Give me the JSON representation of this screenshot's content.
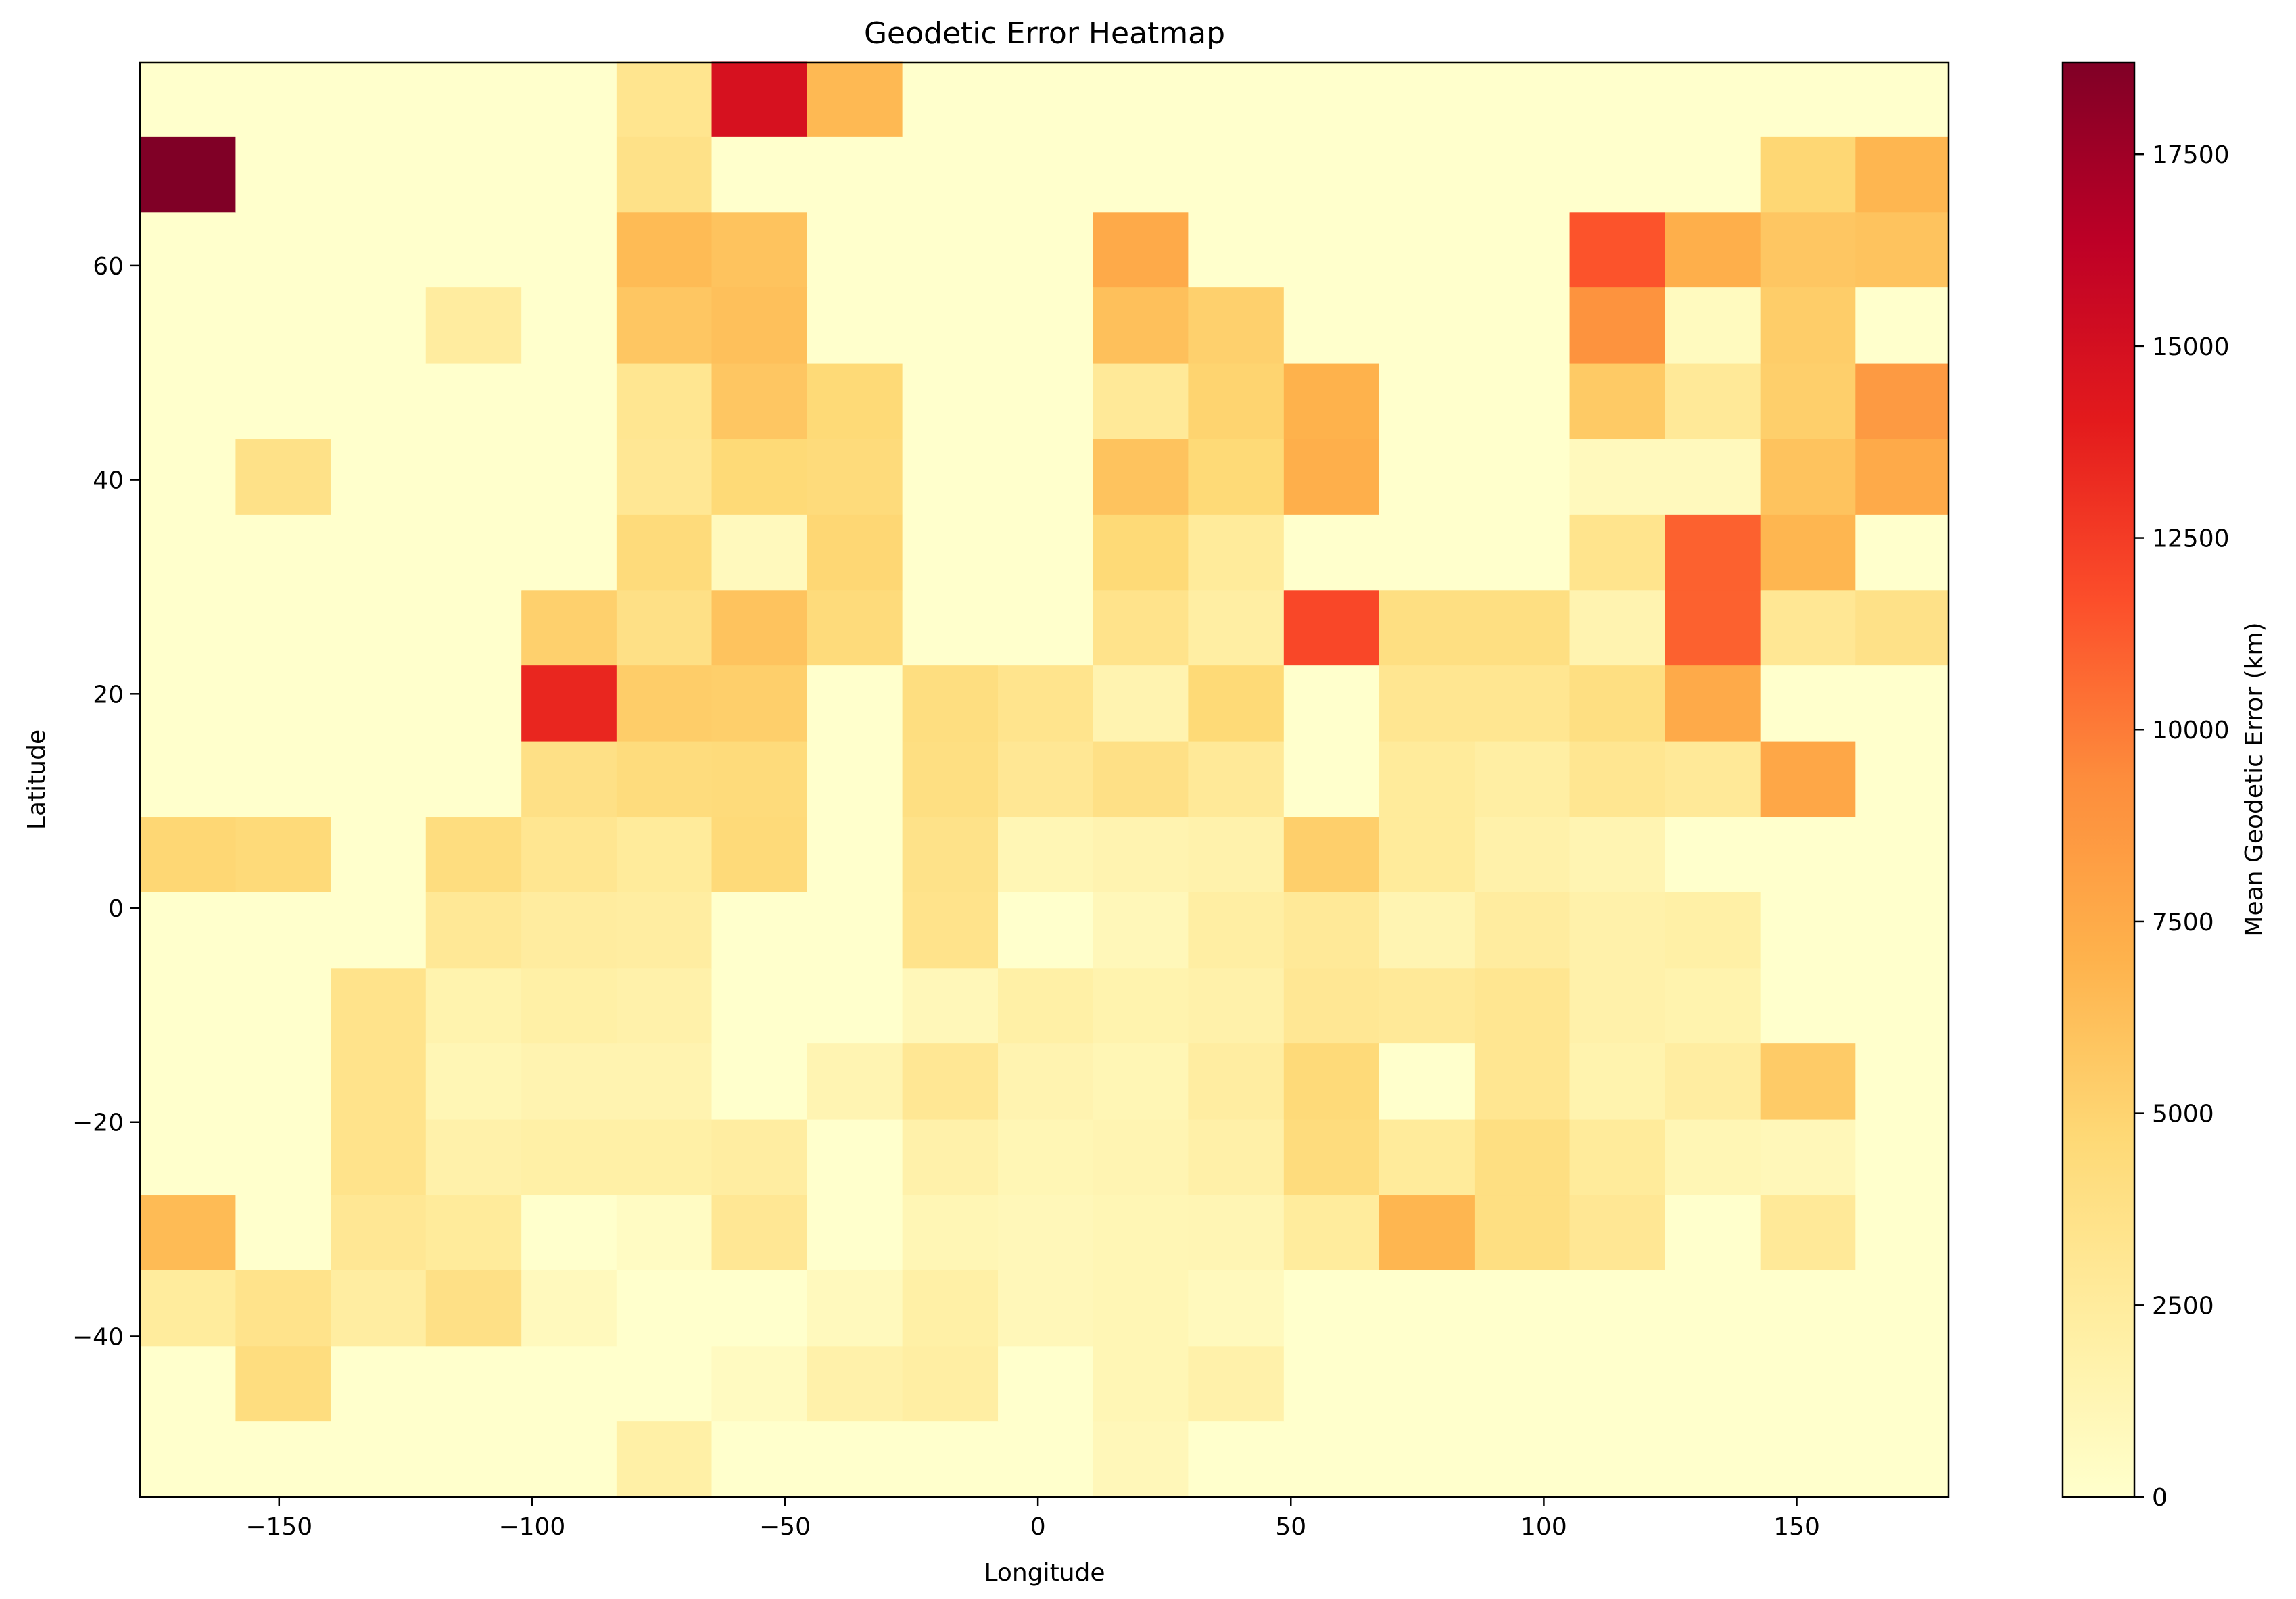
{
  "chart_data": {
    "type": "heatmap",
    "title": "Geodetic Error Heatmap",
    "xlabel": "Longitude",
    "ylabel": "Latitude",
    "colorbar_label": "Mean Geodetic Error (km)",
    "colormap": "YlOrRd",
    "xlim": [
      -177.5,
      180
    ],
    "ylim": [
      -55,
      79
    ],
    "x_edges": [
      -177.5,
      -158.6,
      -139.8,
      -121.0,
      -102.1,
      -83.3,
      -64.5,
      -45.6,
      -26.8,
      -7.9,
      10.9,
      29.7,
      48.6,
      67.4,
      86.3,
      105.1,
      123.9,
      142.8,
      161.6,
      180.0
    ],
    "y_edges": [
      -55,
      -47.9,
      -40.9,
      -33.8,
      -26.8,
      -19.7,
      -12.6,
      -5.6,
      1.5,
      8.5,
      15.6,
      22.7,
      29.7,
      36.8,
      43.8,
      50.9,
      58.0,
      65.0,
      72.1,
      79.1
    ],
    "x_ticks": [
      -150,
      -100,
      -50,
      0,
      50,
      100,
      150
    ],
    "x_tick_labels": [
      "−150",
      "−100",
      "−50",
      "0",
      "50",
      "100",
      "150"
    ],
    "y_ticks": [
      -40,
      -20,
      0,
      20,
      40,
      60
    ],
    "y_tick_labels": [
      "−40",
      "−20",
      "0",
      "20",
      "40",
      "60"
    ],
    "colorbar_range": [
      0,
      18700
    ],
    "colorbar_ticks": [
      0,
      2500,
      5000,
      7500,
      10000,
      12500,
      15000,
      17500
    ],
    "colorbar_tick_labels": [
      "0",
      "2500",
      "5000",
      "7500",
      "10000",
      "12500",
      "15000",
      "17500"
    ],
    "values": [
      [
        0,
        0,
        0,
        0,
        0,
        2000,
        0,
        0,
        0,
        0,
        1000,
        0,
        0,
        0,
        0,
        0,
        0,
        0,
        0
      ],
      [
        0,
        4200,
        0,
        0,
        0,
        0,
        600,
        1800,
        2200,
        0,
        1200,
        1800,
        0,
        0,
        0,
        0,
        0,
        0,
        0
      ],
      [
        2500,
        3500,
        2300,
        3800,
        800,
        0,
        0,
        800,
        2000,
        1000,
        1200,
        800,
        0,
        0,
        0,
        0,
        0,
        0,
        0
      ],
      [
        6500,
        0,
        3000,
        2600,
        0,
        500,
        3000,
        0,
        1200,
        1000,
        1200,
        1300,
        2500,
        6800,
        4000,
        3000,
        0,
        2800,
        0
      ],
      [
        0,
        0,
        3500,
        1800,
        2000,
        2000,
        2300,
        0,
        1800,
        1200,
        1400,
        1900,
        4300,
        2600,
        4000,
        2600,
        1200,
        1000,
        0
      ],
      [
        0,
        0,
        3500,
        1200,
        1500,
        1500,
        0,
        1400,
        3000,
        1500,
        1200,
        2300,
        4500,
        0,
        3200,
        1600,
        2300,
        5500,
        0
      ],
      [
        0,
        0,
        3500,
        1600,
        2000,
        1800,
        0,
        0,
        1000,
        2000,
        1600,
        1800,
        3000,
        2800,
        3200,
        1800,
        1600,
        0,
        0
      ],
      [
        0,
        0,
        0,
        2900,
        2400,
        2300,
        0,
        0,
        3500,
        0,
        1000,
        2200,
        2800,
        1400,
        2400,
        1800,
        2000,
        0,
        0
      ],
      [
        4800,
        4500,
        0,
        4200,
        3200,
        2600,
        4500,
        0,
        3600,
        1200,
        1500,
        1700,
        5300,
        2600,
        1800,
        1400,
        0,
        0,
        0
      ],
      [
        0,
        0,
        0,
        0,
        3800,
        4300,
        4400,
        0,
        4000,
        3000,
        3800,
        2800,
        0,
        2600,
        2200,
        3200,
        2800,
        7700,
        0
      ],
      [
        0,
        0,
        0,
        0,
        13500,
        5400,
        5300,
        0,
        4100,
        3400,
        1500,
        4600,
        0,
        3200,
        3200,
        4000,
        7500,
        0,
        0
      ],
      [
        0,
        0,
        0,
        0,
        5200,
        3800,
        6000,
        4400,
        0,
        0,
        3500,
        2200,
        12000,
        4000,
        4000,
        1500,
        11000,
        3000,
        3700
      ],
      [
        0,
        0,
        0,
        0,
        0,
        4400,
        800,
        4800,
        0,
        0,
        4600,
        2600,
        0,
        0,
        0,
        3400,
        11000,
        6800,
        0
      ],
      [
        0,
        3700,
        0,
        0,
        0,
        3000,
        4600,
        4400,
        0,
        0,
        6000,
        4600,
        7200,
        0,
        0,
        800,
        800,
        6000,
        7500
      ],
      [
        0,
        0,
        0,
        0,
        0,
        3200,
        5800,
        4600,
        0,
        0,
        2800,
        5000,
        7000,
        0,
        0,
        5600,
        2800,
        5300,
        8500
      ],
      [
        0,
        0,
        0,
        2400,
        0,
        5800,
        6200,
        0,
        0,
        0,
        6200,
        5200,
        0,
        0,
        0,
        9000,
        700,
        5400,
        0
      ],
      [
        0,
        0,
        0,
        0,
        0,
        6500,
        6000,
        0,
        0,
        0,
        7500,
        0,
        0,
        0,
        0,
        11500,
        7200,
        5800,
        6000
      ],
      [
        18700,
        0,
        0,
        0,
        0,
        3700,
        0,
        0,
        0,
        0,
        0,
        0,
        0,
        0,
        0,
        0,
        0,
        4800,
        6800
      ],
      [
        0,
        0,
        0,
        0,
        0,
        3300,
        14800,
        6600,
        0,
        0,
        0,
        0,
        0,
        0,
        0,
        0,
        0,
        0,
        0
      ]
    ]
  }
}
